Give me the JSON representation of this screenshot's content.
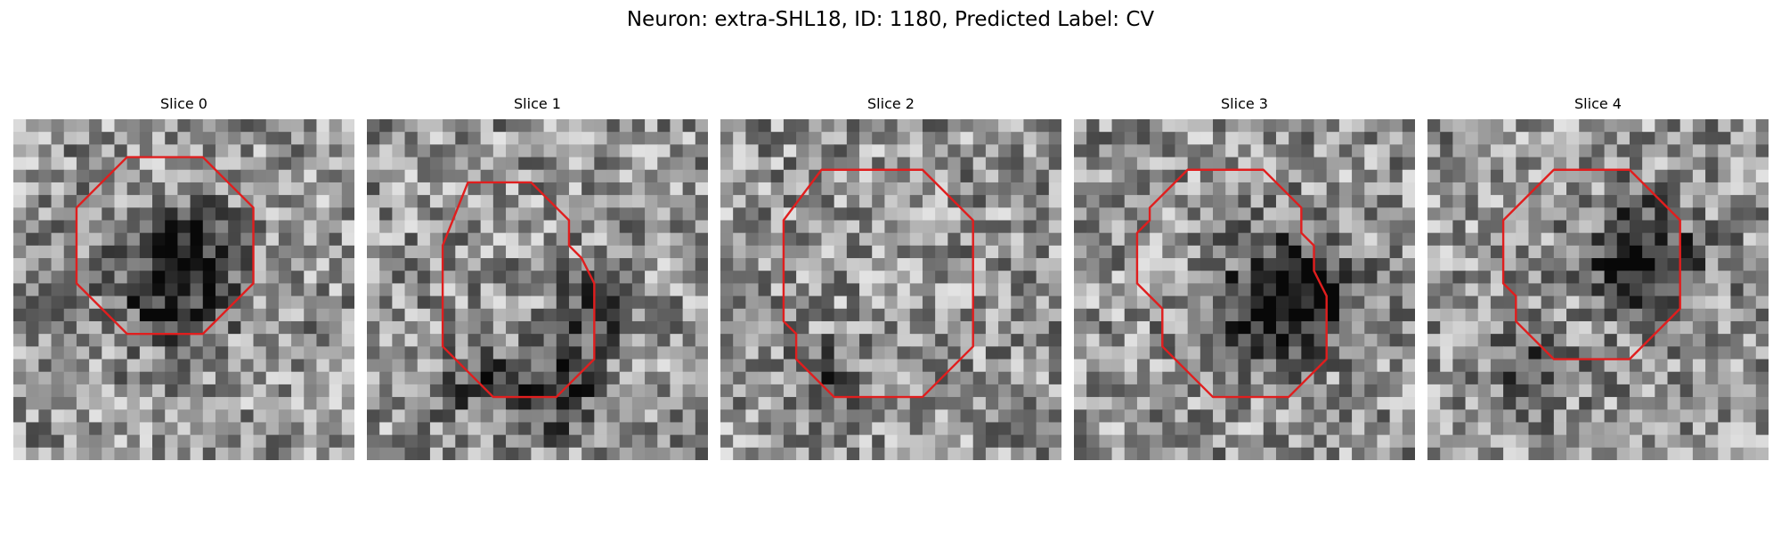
{
  "figure": {
    "title": "Neuron: extra-SHL18, ID: 1180, Predicted Label: CV",
    "contour_color": "#e01e1e"
  },
  "panels": [
    {
      "title": "Slice 0",
      "contour": [
        [
          9,
          3
        ],
        [
          15,
          3
        ],
        [
          19,
          7
        ],
        [
          19,
          13
        ],
        [
          15,
          17
        ],
        [
          9,
          17
        ],
        [
          5,
          13
        ],
        [
          5,
          7
        ]
      ],
      "dark_spots": [
        [
          12.5,
          13.3,
          4,
          0.5
        ],
        [
          14,
          10,
          3,
          0.35
        ]
      ]
    },
    {
      "title": "Slice 1",
      "contour": [
        [
          8,
          0
        ],
        [
          13,
          0
        ],
        [
          16,
          3
        ],
        [
          16,
          5
        ],
        [
          17,
          6
        ],
        [
          17.5,
          7
        ],
        [
          18,
          8
        ],
        [
          18,
          14
        ],
        [
          15,
          17
        ],
        [
          10,
          17
        ],
        [
          6,
          13
        ],
        [
          6,
          5
        ]
      ],
      "dark_spots": [
        [
          15,
          16.5,
          3,
          0.5
        ],
        [
          9,
          16,
          3,
          0.3
        ],
        [
          18,
          10,
          3,
          0.3
        ]
      ]
    },
    {
      "title": "Slice 2",
      "contour": [
        [
          8,
          -1
        ],
        [
          16,
          -1
        ],
        [
          20,
          3
        ],
        [
          20,
          13
        ],
        [
          16,
          17
        ],
        [
          9,
          17
        ],
        [
          6,
          14
        ],
        [
          6,
          12
        ],
        [
          5,
          11
        ],
        [
          5,
          3
        ]
      ],
      "dark_spots": [
        [
          9,
          16,
          3,
          0.25
        ]
      ]
    },
    {
      "title": "Slice 3",
      "contour": [
        [
          9,
          4
        ],
        [
          15,
          4
        ],
        [
          18,
          7
        ],
        [
          18,
          9
        ],
        [
          19,
          10
        ],
        [
          19,
          12
        ],
        [
          19.5,
          13
        ],
        [
          20,
          14
        ],
        [
          20,
          19
        ],
        [
          17,
          22
        ],
        [
          11,
          22
        ],
        [
          7,
          18
        ],
        [
          7,
          15
        ],
        [
          5,
          13
        ],
        [
          5,
          9
        ],
        [
          6,
          8
        ],
        [
          6,
          7
        ]
      ],
      "dark_spots": [
        [
          17,
          14,
          4.5,
          0.65
        ],
        [
          13,
          18,
          3,
          0.2
        ]
      ]
    },
    {
      "title": "Slice 4",
      "contour": [
        [
          10,
          4
        ],
        [
          16,
          4
        ],
        [
          20,
          8
        ],
        [
          20,
          15
        ],
        [
          16,
          19
        ],
        [
          10,
          19
        ],
        [
          7,
          16
        ],
        [
          7,
          14
        ],
        [
          6,
          13
        ],
        [
          6,
          8
        ]
      ],
      "dark_spots": [
        [
          17,
          11,
          4,
          0.55
        ],
        [
          8,
          20,
          3,
          0.3
        ]
      ]
    }
  ]
}
